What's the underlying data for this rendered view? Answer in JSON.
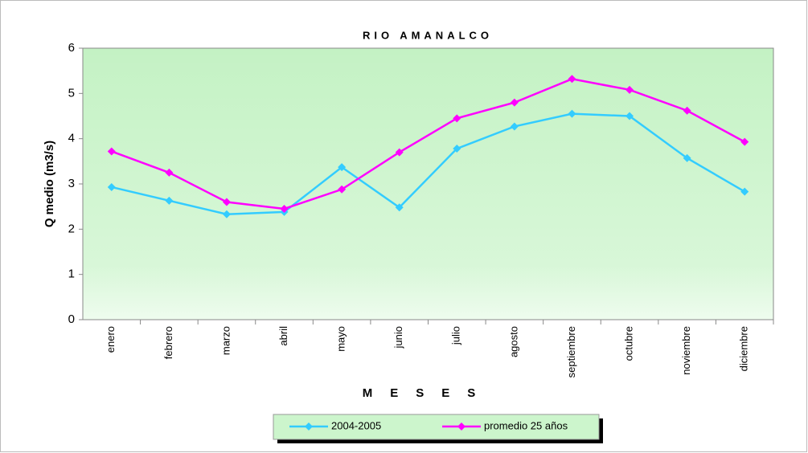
{
  "chart_data": {
    "type": "line",
    "title": "RIO AMANALCO",
    "x_label": "MESES",
    "y_label": "Q medio (m3/s)",
    "categories": [
      "enero",
      "febrero",
      "marzo",
      "abril",
      "mayo",
      "junio",
      "julio",
      "agosto",
      "septiembre",
      "octubre",
      "noviembre",
      "diciembre"
    ],
    "series": [
      {
        "name": "2004-2005",
        "color": "#33ccff",
        "values": [
          2.93,
          2.63,
          2.33,
          2.38,
          3.37,
          2.48,
          3.78,
          4.27,
          4.55,
          4.5,
          3.57,
          2.83
        ]
      },
      {
        "name": "promedio 25 años",
        "color": "#ff00ff",
        "values": [
          3.72,
          3.25,
          2.6,
          2.45,
          2.88,
          3.7,
          4.45,
          4.8,
          5.32,
          5.08,
          4.62,
          3.93
        ]
      }
    ],
    "ylim": [
      0,
      6
    ],
    "yticks": [
      0,
      1,
      2,
      3,
      4,
      5,
      6
    ],
    "grid": false,
    "legend": "bottom"
  }
}
